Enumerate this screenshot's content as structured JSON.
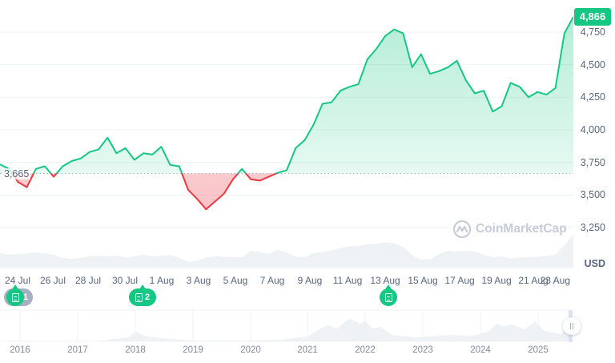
{
  "header": {
    "current_price_badge": "4,866",
    "baseline_label": "3,665",
    "currency_label": "USD",
    "watermark": "CoinMarketCap"
  },
  "colors": {
    "up": "#16c784",
    "down": "#ea3943",
    "axis_text": "#58667e",
    "grid": "#eff2f5",
    "volume": "#eff2f5"
  },
  "news_markers": [
    {
      "label": "1",
      "x_date": "24 Jul",
      "style": "ghost-cluster"
    },
    {
      "label": "2",
      "x_date": "31 Jul"
    },
    {
      "label": "",
      "x_date": "13 Aug"
    }
  ],
  "navigator": {
    "years": [
      "2016",
      "2017",
      "2018",
      "2019",
      "2020",
      "2021",
      "2022",
      "2023",
      "2024",
      "2025"
    ]
  },
  "chart_data": {
    "type": "line",
    "title": "",
    "xlabel": "",
    "ylabel": "USD",
    "ylim": [
      3150,
      4900
    ],
    "yticks": [
      3250,
      3500,
      3750,
      4000,
      4250,
      4500,
      4750
    ],
    "ytick_labels": [
      "3,250",
      "3,500",
      "3,750",
      "4,000",
      "4,250",
      "4,500",
      "4,750"
    ],
    "x_tick_labels": [
      "24 Jul",
      "26 Jul",
      "28 Jul",
      "30 Jul",
      "1 Aug",
      "3 Aug",
      "5 Aug",
      "7 Aug",
      "9 Aug",
      "11 Aug",
      "13 Aug",
      "15 Aug",
      "17 Aug",
      "19 Aug",
      "21 Aug",
      "23 Aug"
    ],
    "baseline": 3665,
    "last_price": 4866,
    "grid": true,
    "legend": "none",
    "series": [
      {
        "name": "Price",
        "x": [
          "22 Jul",
          "23 Jul",
          "23 Jul 12h",
          "24 Jul",
          "24 Jul 12h",
          "25 Jul",
          "25 Jul 12h",
          "26 Jul",
          "26 Jul 12h",
          "27 Jul",
          "27 Jul 12h",
          "28 Jul",
          "28 Jul 12h",
          "29 Jul",
          "29 Jul 12h",
          "30 Jul",
          "30 Jul 12h",
          "31 Jul",
          "31 Jul 12h",
          "1 Aug",
          "1 Aug 12h",
          "2 Aug",
          "2 Aug 12h",
          "3 Aug",
          "3 Aug 12h",
          "4 Aug",
          "4 Aug 12h",
          "5 Aug",
          "5 Aug 12h",
          "6 Aug",
          "6 Aug 12h",
          "7 Aug",
          "7 Aug 12h",
          "8 Aug",
          "8 Aug 12h",
          "9 Aug",
          "9 Aug 12h",
          "10 Aug",
          "10 Aug 12h",
          "11 Aug",
          "11 Aug 12h",
          "12 Aug",
          "12 Aug 12h",
          "13 Aug",
          "13 Aug 12h",
          "14 Aug",
          "14 Aug 12h",
          "15 Aug",
          "15 Aug 12h",
          "16 Aug",
          "16 Aug 12h",
          "17 Aug",
          "17 Aug 12h",
          "18 Aug",
          "18 Aug 12h",
          "19 Aug",
          "19 Aug 12h",
          "20 Aug",
          "20 Aug 12h",
          "21 Aug",
          "21 Aug 12h",
          "22 Aug",
          "22 Aug 12h",
          "23 Aug",
          "23 Aug 12h"
        ],
        "values": [
          3735,
          3700,
          3600,
          3560,
          3700,
          3720,
          3640,
          3720,
          3760,
          3780,
          3830,
          3850,
          3940,
          3820,
          3860,
          3770,
          3820,
          3810,
          3870,
          3730,
          3720,
          3540,
          3470,
          3390,
          3450,
          3510,
          3620,
          3700,
          3620,
          3610,
          3640,
          3670,
          3690,
          3860,
          3920,
          4040,
          4200,
          4210,
          4300,
          4330,
          4350,
          4540,
          4620,
          4720,
          4770,
          4740,
          4480,
          4580,
          4430,
          4450,
          4480,
          4530,
          4380,
          4280,
          4300,
          4140,
          4180,
          4360,
          4330,
          4250,
          4290,
          4270,
          4320,
          4740,
          4866
        ]
      },
      {
        "name": "Volume (relative)",
        "values": [
          38,
          34,
          36,
          37,
          40,
          38,
          34,
          24,
          22,
          25,
          29,
          31,
          29,
          31,
          26,
          29,
          34,
          29,
          30,
          33,
          25,
          14,
          16,
          26,
          29,
          28,
          26,
          26,
          44,
          41,
          36,
          48,
          40,
          28,
          27,
          38,
          41,
          46,
          52,
          57,
          58,
          62,
          64,
          68,
          65,
          56,
          33,
          20,
          21,
          35,
          45,
          43,
          45,
          42,
          34,
          27,
          29,
          24,
          26,
          27,
          28,
          30,
          34,
          60,
          90
        ]
      }
    ]
  }
}
